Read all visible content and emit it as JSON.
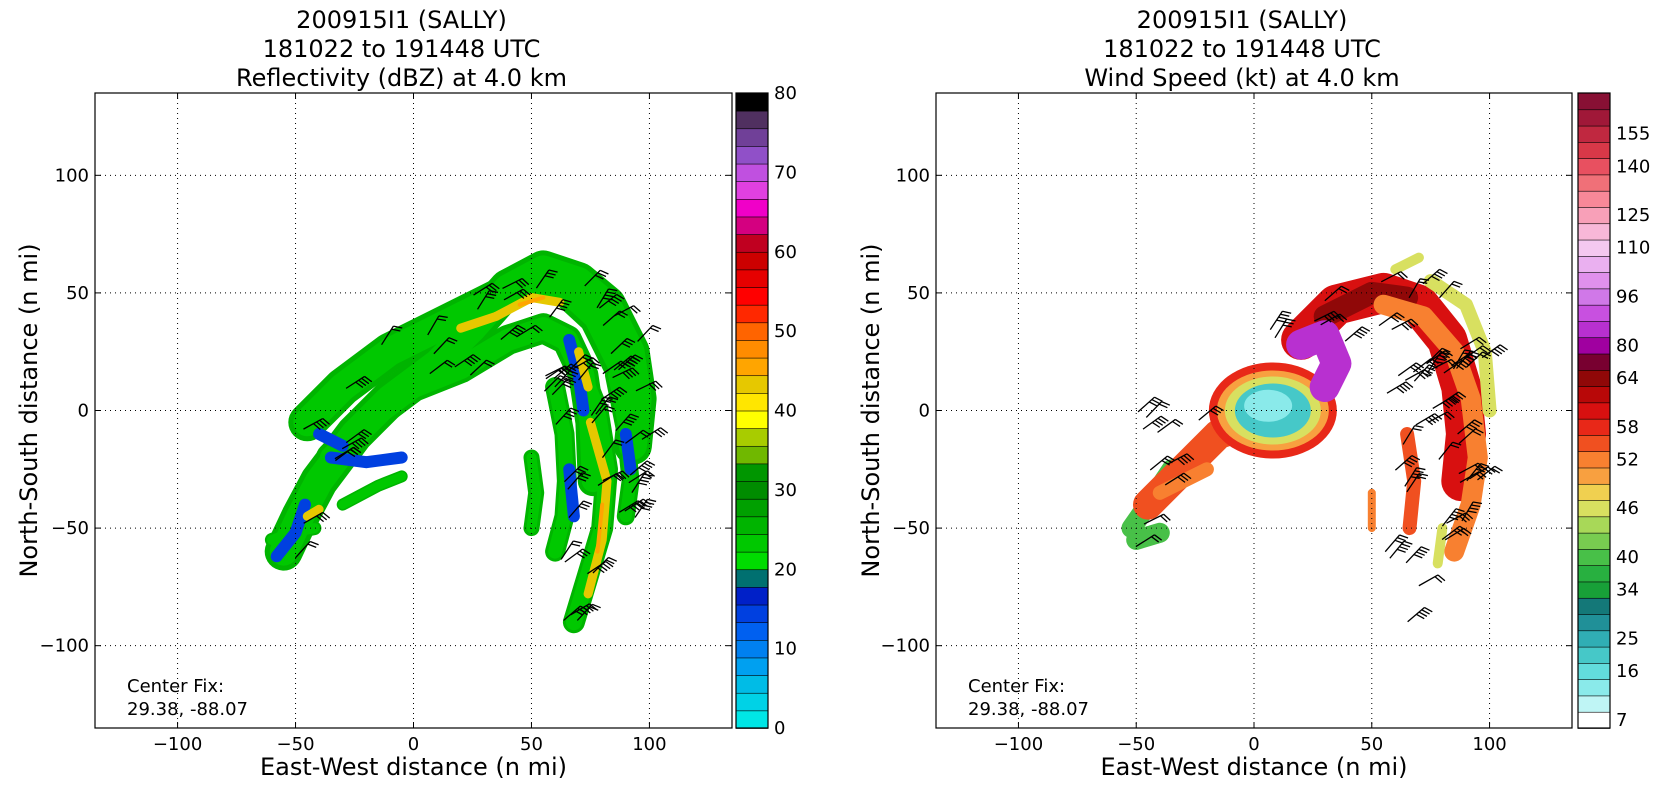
{
  "chart_data": [
    {
      "type": "heatmap",
      "title_lines": [
        "200915I1 (SALLY)",
        "181022 to 191448 UTC",
        "Reflectivity (dBZ) at 4.0 km"
      ],
      "xlabel": "East-West distance (n mi)",
      "ylabel": "North-South distance (n mi)",
      "xlim": [
        -135,
        135
      ],
      "ylim": [
        -135,
        135
      ],
      "xticks": [
        -100,
        -50,
        0,
        50,
        100
      ],
      "yticks": [
        100,
        50,
        0,
        -50,
        -100
      ],
      "x_tick_labels": [
        "−100",
        "−50",
        "0",
        "50",
        "100"
      ],
      "y_tick_labels": [
        "100",
        "50",
        "0",
        "−50",
        "−100"
      ],
      "grid": true,
      "annotation": {
        "line1": "Center Fix:",
        "line2": "29.38, -88.07"
      },
      "colorbar": {
        "tick_values": [
          0,
          10,
          20,
          30,
          40,
          50,
          60,
          70,
          80
        ],
        "tick_labels": [
          "0",
          "10",
          "20",
          "30",
          "40",
          "50",
          "60",
          "70",
          "80"
        ],
        "colors": [
          "#00e6e6",
          "#00d2e6",
          "#00bce6",
          "#00a0f0",
          "#0080f0",
          "#0060f0",
          "#0040e0",
          "#0020c8",
          "#007070",
          "#00dc00",
          "#00c800",
          "#00b400",
          "#00a000",
          "#008c00",
          "#009600",
          "#70b800",
          "#a8cc00",
          "#ffff00",
          "#ffe600",
          "#e6c800",
          "#ffa500",
          "#ff8c00",
          "#ff6400",
          "#ff2800",
          "#ff0000",
          "#e60000",
          "#cc0000",
          "#c00020",
          "#d40080",
          "#f000c8",
          "#e040e0",
          "#c050e0",
          "#9050c8",
          "#704098",
          "#503060",
          "#000000"
        ]
      },
      "wind_barbs": true,
      "echo_shape": "curved bands extending from southwest to northeast and south"
    },
    {
      "type": "heatmap",
      "title_lines": [
        "200915I1 (SALLY)",
        "181022 to 191448 UTC",
        "Wind Speed (kt) at 4.0 km"
      ],
      "xlabel": "East-West distance (n mi)",
      "ylabel": "North-South distance (n mi)",
      "xlim": [
        -135,
        135
      ],
      "ylim": [
        -135,
        135
      ],
      "xticks": [
        -100,
        -50,
        0,
        50,
        100
      ],
      "yticks": [
        100,
        50,
        0,
        -50,
        -100
      ],
      "x_tick_labels": [
        "−100",
        "−50",
        "0",
        "50",
        "100"
      ],
      "y_tick_labels": [
        "100",
        "50",
        "0",
        "−50",
        "−100"
      ],
      "grid": true,
      "annotation": {
        "line1": "Center Fix:",
        "line2": "29.38, -88.07"
      },
      "colorbar": {
        "tick_labels": [
          "7",
          "16",
          "25",
          "34",
          "40",
          "46",
          "52",
          "58",
          "64",
          "80",
          "96",
          "110",
          "125",
          "140",
          "155"
        ],
        "colors": [
          "#ffffff",
          "#bff5f5",
          "#8aeaea",
          "#62dcdc",
          "#46c8c8",
          "#30aeb4",
          "#209098",
          "#147878",
          "#18a038",
          "#28b040",
          "#48c048",
          "#78cc50",
          "#a8d858",
          "#d8e060",
          "#f0d050",
          "#f8a040",
          "#f88030",
          "#f05020",
          "#e82818",
          "#d81010",
          "#b80808",
          "#900808",
          "#780030",
          "#a000a0",
          "#b830d0",
          "#c850e0",
          "#d078e8",
          "#e090ec",
          "#eab0f0",
          "#f4c8f0",
          "#f8b8d8",
          "#f8a0b8",
          "#f88898",
          "#f07078",
          "#e85060",
          "#d83848",
          "#c02840",
          "#a01838",
          "#881034"
        ]
      },
      "wind_barbs": true,
      "eye_feature": "light cyan low-wind center near (10, 0) surrounded by high winds"
    }
  ]
}
